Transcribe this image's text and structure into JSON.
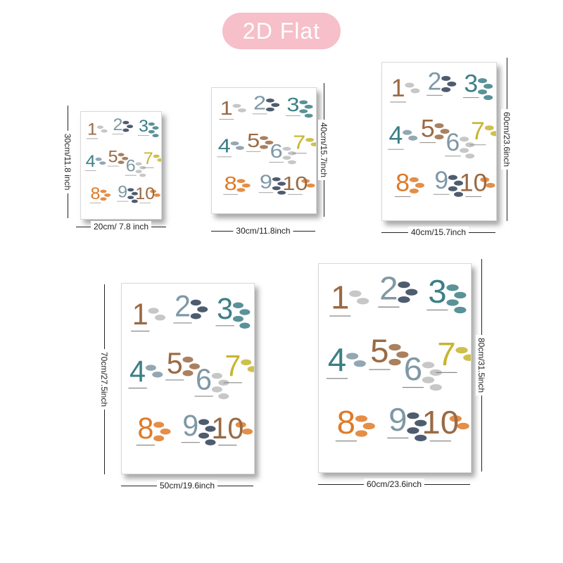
{
  "title": "2D Flat",
  "colors": {
    "pill": "#f6bfc9",
    "brown": "#9a6a44",
    "teal": "#3c7f86",
    "slate": "#7f98a5",
    "orange": "#df7a26",
    "yellow": "#c7b52e",
    "navy": "#2f3f55",
    "gray": "#bdbdbd"
  },
  "poster": {
    "numbers": [
      "1",
      "2",
      "3",
      "4",
      "5",
      "6",
      "7",
      "8",
      "9",
      "10"
    ]
  },
  "sizes": [
    {
      "width_label": "20cm/ 7.8 inch",
      "height_label": "30cm/11.8 inch"
    },
    {
      "width_label": "30cm/11.8inch",
      "height_label": "40cm/15.7inch"
    },
    {
      "width_label": "40cm/15.7inch",
      "height_label": "60cm/23.6inch"
    },
    {
      "width_label": "50cm/19.6inch",
      "height_label": "70cm/27.5inch"
    },
    {
      "width_label": "60cm/23.6inch",
      "height_label": "80cm/31.5inch"
    }
  ]
}
